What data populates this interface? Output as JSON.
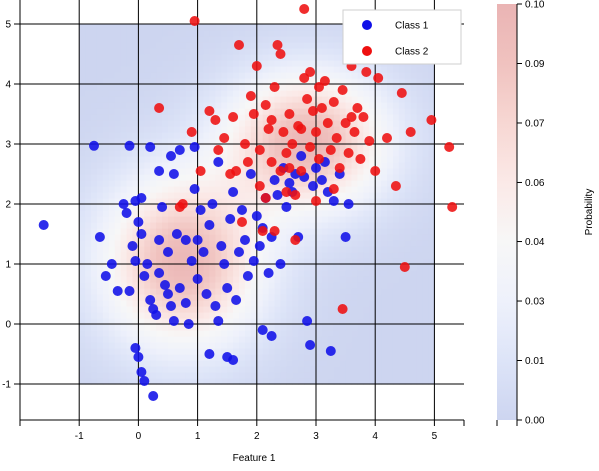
{
  "chart_data": {
    "type": "scatter",
    "xlabel": "Feature 1",
    "ylabel": "",
    "xlim": [
      -2.0,
      5.5
    ],
    "ylim": [
      -1.6,
      5.4
    ],
    "x_ticks": [
      "-1",
      "0",
      "1",
      "2",
      "3",
      "4",
      "5"
    ],
    "y_ticks": [
      "-1",
      "0",
      "1",
      "2",
      "3",
      "4",
      "5"
    ],
    "x_tick_values": [
      -1,
      0,
      1,
      2,
      3,
      4,
      5
    ],
    "y_tick_values": [
      -1,
      0,
      1,
      2,
      3,
      4,
      5
    ],
    "grid": true,
    "legend_position": "top-right",
    "background_region": {
      "x": [
        -1,
        5
      ],
      "y": [
        -1,
        5
      ]
    },
    "series": [
      {
        "name": "Class 1",
        "color": "#1010e8",
        "points": [
          [
            -1.6,
            1.65
          ],
          [
            -0.75,
            2.97
          ],
          [
            -0.65,
            1.45
          ],
          [
            -0.55,
            0.8
          ],
          [
            -0.45,
            1.0
          ],
          [
            -0.35,
            0.55
          ],
          [
            -0.25,
            2.0
          ],
          [
            -0.2,
            1.85
          ],
          [
            -0.15,
            0.55
          ],
          [
            -0.1,
            1.3
          ],
          [
            -0.05,
            1.05
          ],
          [
            -0.05,
            2.05
          ],
          [
            0.0,
            1.7
          ],
          [
            0.05,
            2.1
          ],
          [
            0.05,
            1.5
          ],
          [
            0.1,
            0.8
          ],
          [
            0.15,
            1.0
          ],
          [
            0.2,
            0.4
          ],
          [
            0.25,
            0.25
          ],
          [
            0.3,
            0.15
          ],
          [
            0.35,
            1.4
          ],
          [
            0.35,
            0.85
          ],
          [
            0.4,
            1.95
          ],
          [
            0.45,
            0.65
          ],
          [
            0.5,
            1.2
          ],
          [
            0.5,
            0.5
          ],
          [
            0.55,
            0.3
          ],
          [
            0.6,
            0.05
          ],
          [
            0.6,
            2.5
          ],
          [
            0.65,
            1.5
          ],
          [
            0.7,
            0.6
          ],
          [
            0.7,
            2.9
          ],
          [
            0.8,
            1.4
          ],
          [
            0.8,
            0.35
          ],
          [
            0.85,
            0.0
          ],
          [
            0.9,
            1.05
          ],
          [
            0.95,
            2.25
          ],
          [
            0.95,
            2.95
          ],
          [
            1.0,
            0.75
          ],
          [
            1.0,
            1.4
          ],
          [
            1.05,
            1.9
          ],
          [
            1.1,
            1.2
          ],
          [
            1.15,
            0.5
          ],
          [
            1.2,
            1.65
          ],
          [
            1.25,
            2.0
          ],
          [
            1.3,
            0.3
          ],
          [
            1.35,
            0.05
          ],
          [
            1.4,
            1.3
          ],
          [
            1.45,
            1.0
          ],
          [
            1.5,
            0.6
          ],
          [
            1.55,
            1.75
          ],
          [
            1.6,
            2.2
          ],
          [
            1.65,
            0.4
          ],
          [
            1.7,
            1.2
          ],
          [
            1.75,
            1.9
          ],
          [
            1.8,
            1.4
          ],
          [
            1.85,
            0.8
          ],
          [
            1.9,
            2.5
          ],
          [
            1.95,
            1.05
          ],
          [
            2.0,
            1.8
          ],
          [
            2.05,
            1.3
          ],
          [
            2.1,
            1.6
          ],
          [
            2.15,
            2.1
          ],
          [
            2.2,
            0.85
          ],
          [
            2.25,
            1.45
          ],
          [
            2.3,
            2.4
          ],
          [
            2.35,
            2.15
          ],
          [
            2.4,
            1.0
          ],
          [
            2.45,
            2.6
          ],
          [
            2.5,
            1.95
          ],
          [
            2.55,
            2.35
          ],
          [
            2.6,
            2.2
          ],
          [
            2.65,
            2.5
          ],
          [
            2.7,
            1.45
          ],
          [
            2.75,
            2.8
          ],
          [
            2.8,
            2.45
          ],
          [
            2.85,
            0.05
          ],
          [
            2.9,
            -0.35
          ],
          [
            2.95,
            2.3
          ],
          [
            3.0,
            2.6
          ],
          [
            3.1,
            2.4
          ],
          [
            3.15,
            2.7
          ],
          [
            3.2,
            2.2
          ],
          [
            3.25,
            -0.45
          ],
          [
            3.3,
            2.05
          ],
          [
            3.4,
            2.5
          ],
          [
            3.5,
            1.45
          ],
          [
            3.55,
            2.0
          ],
          [
            -0.05,
            -0.4
          ],
          [
            0.0,
            -0.55
          ],
          [
            0.05,
            -0.8
          ],
          [
            0.1,
            -0.95
          ],
          [
            0.25,
            -1.2
          ],
          [
            0.2,
            2.95
          ],
          [
            0.35,
            2.55
          ],
          [
            -0.15,
            2.97
          ],
          [
            0.55,
            2.8
          ],
          [
            1.2,
            -0.5
          ],
          [
            1.5,
            -0.55
          ],
          [
            1.6,
            -0.6
          ],
          [
            2.1,
            -0.1
          ],
          [
            2.25,
            -0.2
          ],
          [
            1.35,
            2.7
          ]
        ]
      },
      {
        "name": "Class 2",
        "color": "#ee1010",
        "points": [
          [
            0.35,
            3.6
          ],
          [
            0.95,
            5.05
          ],
          [
            0.9,
            3.2
          ],
          [
            0.75,
            2.0
          ],
          [
            1.05,
            2.55
          ],
          [
            1.2,
            3.55
          ],
          [
            1.3,
            3.4
          ],
          [
            1.35,
            2.9
          ],
          [
            1.45,
            3.1
          ],
          [
            1.6,
            3.45
          ],
          [
            1.65,
            2.55
          ],
          [
            1.7,
            4.65
          ],
          [
            1.75,
            1.7
          ],
          [
            1.8,
            3.0
          ],
          [
            1.85,
            2.7
          ],
          [
            1.9,
            3.8
          ],
          [
            1.95,
            3.5
          ],
          [
            2.0,
            4.3
          ],
          [
            2.05,
            2.9
          ],
          [
            2.1,
            1.55
          ],
          [
            2.15,
            3.65
          ],
          [
            2.2,
            3.25
          ],
          [
            2.25,
            2.7
          ],
          [
            2.3,
            3.95
          ],
          [
            2.35,
            4.65
          ],
          [
            2.4,
            4.5
          ],
          [
            2.45,
            3.2
          ],
          [
            2.5,
            2.85
          ],
          [
            2.55,
            3.5
          ],
          [
            2.6,
            3.0
          ],
          [
            2.65,
            1.4
          ],
          [
            2.7,
            3.3
          ],
          [
            2.75,
            2.55
          ],
          [
            2.8,
            4.1
          ],
          [
            2.85,
            3.75
          ],
          [
            2.9,
            2.95
          ],
          [
            2.95,
            3.55
          ],
          [
            3.0,
            3.2
          ],
          [
            3.05,
            2.75
          ],
          [
            3.1,
            3.6
          ],
          [
            3.15,
            4.05
          ],
          [
            3.2,
            3.35
          ],
          [
            3.25,
            2.9
          ],
          [
            3.3,
            3.7
          ],
          [
            3.35,
            3.1
          ],
          [
            3.4,
            2.6
          ],
          [
            3.45,
            3.9
          ],
          [
            3.5,
            3.35
          ],
          [
            3.55,
            2.85
          ],
          [
            3.6,
            4.3
          ],
          [
            3.65,
            3.2
          ],
          [
            3.7,
            3.6
          ],
          [
            3.75,
            2.75
          ],
          [
            3.8,
            3.45
          ],
          [
            3.85,
            4.2
          ],
          [
            3.9,
            3.05
          ],
          [
            4.0,
            2.55
          ],
          [
            4.05,
            4.1
          ],
          [
            4.2,
            3.1
          ],
          [
            4.35,
            2.3
          ],
          [
            4.45,
            3.85
          ],
          [
            4.5,
            0.95
          ],
          [
            4.6,
            3.2
          ],
          [
            4.95,
            3.4
          ],
          [
            5.25,
            2.95
          ],
          [
            5.3,
            1.95
          ],
          [
            2.8,
            5.25
          ],
          [
            3.45,
            0.25
          ],
          [
            3.55,
            4.5
          ],
          [
            2.9,
            4.2
          ],
          [
            2.25,
            3.4
          ],
          [
            2.5,
            2.2
          ],
          [
            2.65,
            2.15
          ],
          [
            3.0,
            2.05
          ],
          [
            2.15,
            2.1
          ],
          [
            2.3,
            1.55
          ],
          [
            2.4,
            2.55
          ],
          [
            2.55,
            2.6
          ],
          [
            3.3,
            2.25
          ],
          [
            3.05,
            3.95
          ],
          [
            2.75,
            3.25
          ],
          [
            3.6,
            3.45
          ],
          [
            1.55,
            2.5
          ],
          [
            2.05,
            2.3
          ],
          [
            0.7,
            1.95
          ]
        ]
      }
    ],
    "colorbar": {
      "label": "Probability",
      "min": 0.0,
      "max": 0.1,
      "ticks": [
        "0.00",
        "0.01",
        "0.03",
        "0.04",
        "0.06",
        "0.07",
        "0.09",
        "0.10"
      ],
      "tick_values": [
        0.0,
        0.0143,
        0.0286,
        0.0429,
        0.0571,
        0.0714,
        0.0857,
        0.1
      ],
      "colors_low_to_high": [
        "#cdd5f0",
        "#dde4f8",
        "#eef1fb",
        "#f7f7f7",
        "#fbe9e7",
        "#f7d7d3",
        "#f0c2bf",
        "#eab4b4"
      ]
    },
    "density_surface": {
      "x_range": [
        -1,
        5
      ],
      "y_range": [
        -1,
        5
      ],
      "components": [
        {
          "center": [
            0.75,
            1.05
          ],
          "spread": [
            0.95,
            1.0
          ],
          "weight": 1.0
        },
        {
          "center": [
            2.85,
            3.05
          ],
          "spread": [
            0.95,
            0.8
          ],
          "weight": 1.0
        }
      ]
    }
  }
}
